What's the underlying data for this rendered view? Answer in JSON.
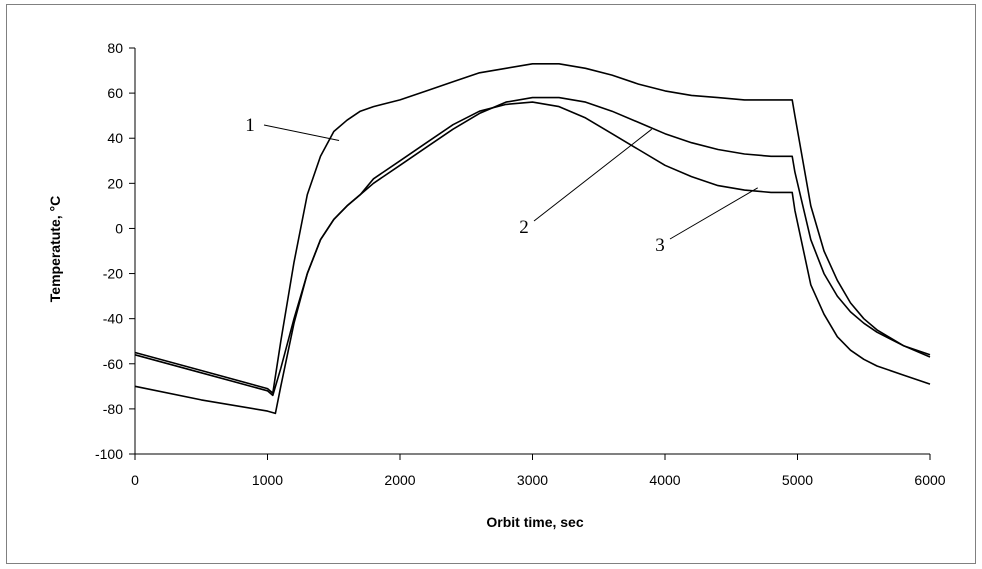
{
  "chart_data": {
    "type": "line",
    "title": "",
    "xlabel": "Orbit time, sec",
    "ylabel": "Temperatute, °C",
    "xlim": [
      0,
      6000
    ],
    "ylim": [
      -100,
      80
    ],
    "xticks": [
      0,
      1000,
      2000,
      3000,
      4000,
      5000,
      6000
    ],
    "yticks": [
      80,
      60,
      40,
      20,
      0,
      -20,
      -40,
      -60,
      -80,
      -100
    ],
    "grid": false,
    "legend": "none",
    "series": [
      {
        "name": "1",
        "color": "#000000",
        "x": [
          0,
          500,
          1000,
          1040,
          1100,
          1200,
          1300,
          1400,
          1500,
          1600,
          1700,
          1800,
          2000,
          2200,
          2400,
          2600,
          2800,
          3000,
          3200,
          3400,
          3600,
          3800,
          4000,
          4200,
          4400,
          4600,
          4800,
          4960,
          4980,
          5100,
          5200,
          5300,
          5400,
          5500,
          5600,
          5800,
          6000
        ],
        "y": [
          -55,
          -63,
          -71,
          -73,
          -50,
          -15,
          15,
          32,
          43,
          48,
          52,
          54,
          57,
          61,
          65,
          69,
          71,
          73,
          73,
          71,
          68,
          64,
          61,
          59,
          58,
          57,
          57,
          57,
          50,
          10,
          -10,
          -23,
          -33,
          -40,
          -45,
          -52,
          -57
        ]
      },
      {
        "name": "2",
        "color": "#000000",
        "x": [
          0,
          500,
          1000,
          1040,
          1100,
          1200,
          1300,
          1400,
          1500,
          1600,
          1700,
          1800,
          2000,
          2200,
          2400,
          2600,
          2800,
          3000,
          3200,
          3400,
          3600,
          3800,
          4000,
          4200,
          4400,
          4600,
          4800,
          4960,
          4980,
          5100,
          5200,
          5300,
          5400,
          5500,
          5600,
          5800,
          6000
        ],
        "y": [
          -56,
          -64,
          -72,
          -74,
          -62,
          -40,
          -20,
          -5,
          4,
          10,
          15,
          20,
          28,
          36,
          44,
          51,
          56,
          58,
          58,
          56,
          52,
          47,
          42,
          38,
          35,
          33,
          32,
          32,
          25,
          -5,
          -20,
          -30,
          -37,
          -42,
          -46,
          -52,
          -56
        ]
      },
      {
        "name": "3",
        "color": "#000000",
        "x": [
          0,
          500,
          1000,
          1060,
          1100,
          1200,
          1300,
          1400,
          1500,
          1600,
          1700,
          1800,
          2000,
          2200,
          2400,
          2600,
          2800,
          3000,
          3200,
          3400,
          3600,
          3800,
          4000,
          4200,
          4400,
          4600,
          4800,
          4960,
          4980,
          5100,
          5200,
          5300,
          5400,
          5500,
          5600,
          5800,
          6000
        ],
        "y": [
          -70,
          -76,
          -81,
          -82,
          -70,
          -42,
          -20,
          -5,
          4,
          10,
          15,
          22,
          30,
          38,
          46,
          52,
          55,
          56,
          54,
          49,
          42,
          35,
          28,
          23,
          19,
          17,
          16,
          16,
          8,
          -25,
          -38,
          -48,
          -54,
          -58,
          -61,
          -65,
          -69
        ]
      }
    ],
    "annotations": [
      {
        "text": "1",
        "x": 1540,
        "y": 39
      },
      {
        "text": "2",
        "x": 3900,
        "y": 44
      },
      {
        "text": "3",
        "x": 4700,
        "y": 18
      }
    ]
  }
}
